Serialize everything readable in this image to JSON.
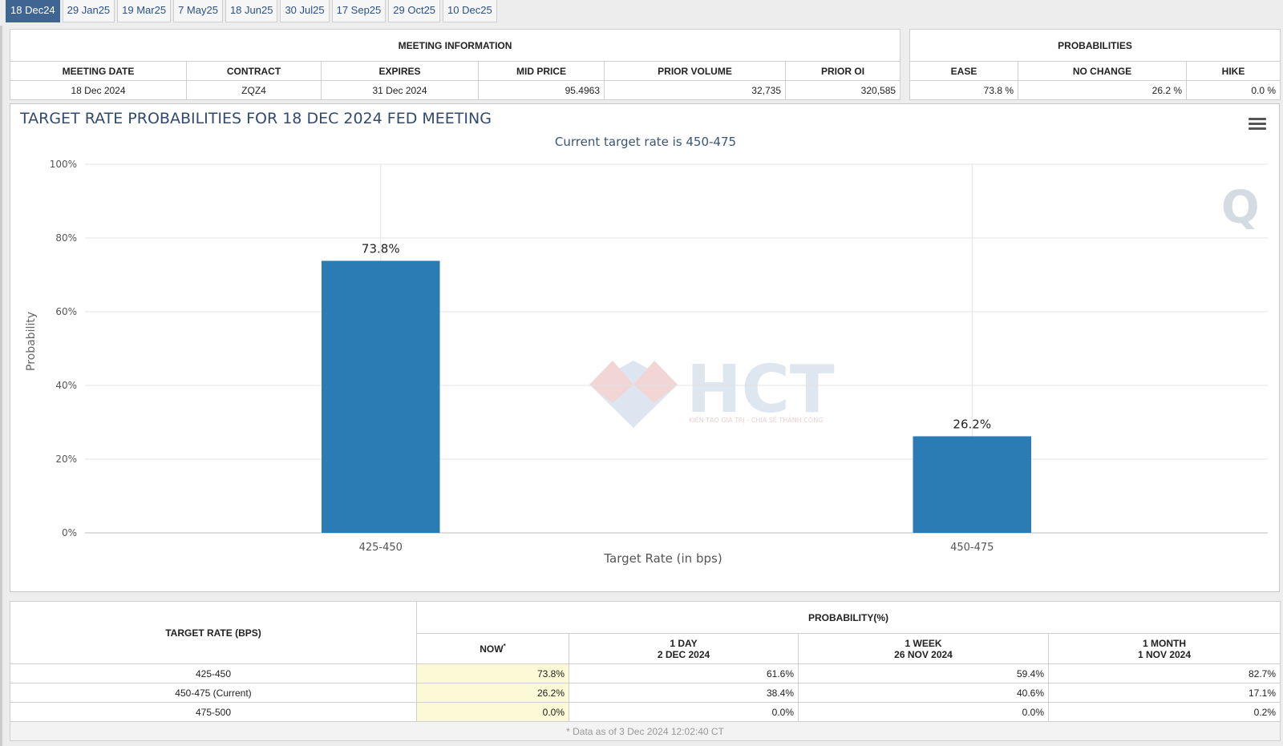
{
  "tabs": [
    "18 Dec24",
    "29 Jan25",
    "19 Mar25",
    "7 May25",
    "18 Jun25",
    "30 Jul25",
    "17 Sep25",
    "29 Oct25",
    "10 Dec25"
  ],
  "meeting_info": {
    "title": "MEETING INFORMATION",
    "headers": [
      "MEETING DATE",
      "CONTRACT",
      "EXPIRES",
      "MID PRICE",
      "PRIOR VOLUME",
      "PRIOR OI"
    ],
    "values": [
      "18 Dec 2024",
      "ZQZ4",
      "31 Dec 2024",
      "95.4963",
      "32,735",
      "320,585"
    ]
  },
  "probabilities": {
    "title": "PROBABILITIES",
    "headers": [
      "EASE",
      "NO CHANGE",
      "HIKE"
    ],
    "values": [
      "73.8 %",
      "26.2 %",
      "0.0 %"
    ]
  },
  "chart_data": {
    "type": "bar",
    "title": "TARGET RATE PROBABILITIES FOR 18 DEC 2024 FED MEETING",
    "subtitle": "Current target rate is 450-475",
    "xlabel": "Target Rate (in bps)",
    "ylabel": "Probability",
    "categories": [
      "425-450",
      "450-475"
    ],
    "values": [
      73.8,
      26.2
    ],
    "data_labels": [
      "73.8%",
      "26.2%"
    ],
    "ylim": [
      0,
      100
    ],
    "yticks": [
      "0%",
      "20%",
      "40%",
      "60%",
      "80%",
      "100%"
    ],
    "bar_color": "#2b7bb5",
    "grid": true,
    "legend": "none"
  },
  "watermark": {
    "brand": "HCT",
    "tagline": "KIẾN TẠO GIÁ TRỊ - CHIA SẺ THÀNH CÔNG"
  },
  "history": {
    "col_target": "TARGET RATE (BPS)",
    "col_prob": "PROBABILITY(%)",
    "sub_headers": [
      {
        "line1": "NOW",
        "line2": ""
      },
      {
        "line1": "1 DAY",
        "line2": "2 DEC 2024"
      },
      {
        "line1": "1 WEEK",
        "line2": "26 NOV 2024"
      },
      {
        "line1": "1 MONTH",
        "line2": "1 NOV 2024"
      }
    ],
    "now_marker": "*",
    "rows": [
      {
        "rate": "425-450",
        "now": "73.8%",
        "day": "61.6%",
        "week": "59.4%",
        "month": "82.7%"
      },
      {
        "rate": "450-475 (Current)",
        "now": "26.2%",
        "day": "38.4%",
        "week": "40.6%",
        "month": "17.1%"
      },
      {
        "rate": "475-500",
        "now": "0.0%",
        "day": "0.0%",
        "week": "0.0%",
        "month": "0.2%"
      }
    ],
    "footnote": "* Data as of 3 Dec 2024 12:02:40 CT"
  }
}
